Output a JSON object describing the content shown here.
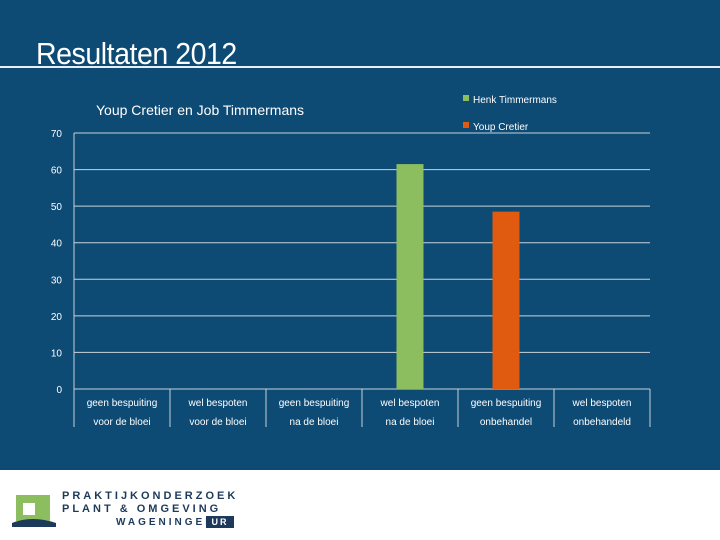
{
  "slide": {
    "title": "Resultaten 2012"
  },
  "logo": {
    "line1": "PRAKTIJKONDERZOEK",
    "line2": "PLANT & OMGEVING",
    "line3": "WAGENINGEN",
    "badge": "UR"
  },
  "colors": {
    "background": "#0d4a74",
    "grid": "#c9d3db",
    "text": "#ffffff",
    "series_henk": "#8cbd5f",
    "series_youp": "#e05a10"
  },
  "chart_data": {
    "type": "bar",
    "title": "Youp Cretier en Job Timmermans",
    "ylim": [
      0,
      70
    ],
    "yticks": [
      0,
      10,
      20,
      30,
      40,
      50,
      60,
      70
    ],
    "grid": true,
    "legend_position": "top-right",
    "categories": [
      [
        "geen bespuiting",
        "voor de bloei"
      ],
      [
        "wel bespoten",
        "voor de bloei"
      ],
      [
        "geen bespuiting",
        "na de bloei"
      ],
      [
        "wel bespoten",
        "na de bloei"
      ],
      [
        "geen bespuiting",
        "onbehandel"
      ],
      [
        "wel bespoten",
        "onbehandeld"
      ]
    ],
    "series": [
      {
        "name": "Henk Timmermans",
        "color": "#8cbd5f",
        "values": [
          null,
          null,
          null,
          61.5,
          null,
          null
        ]
      },
      {
        "name": "Youp Cretier",
        "color": "#e05a10",
        "values": [
          null,
          null,
          null,
          null,
          48.5,
          null
        ]
      }
    ]
  }
}
